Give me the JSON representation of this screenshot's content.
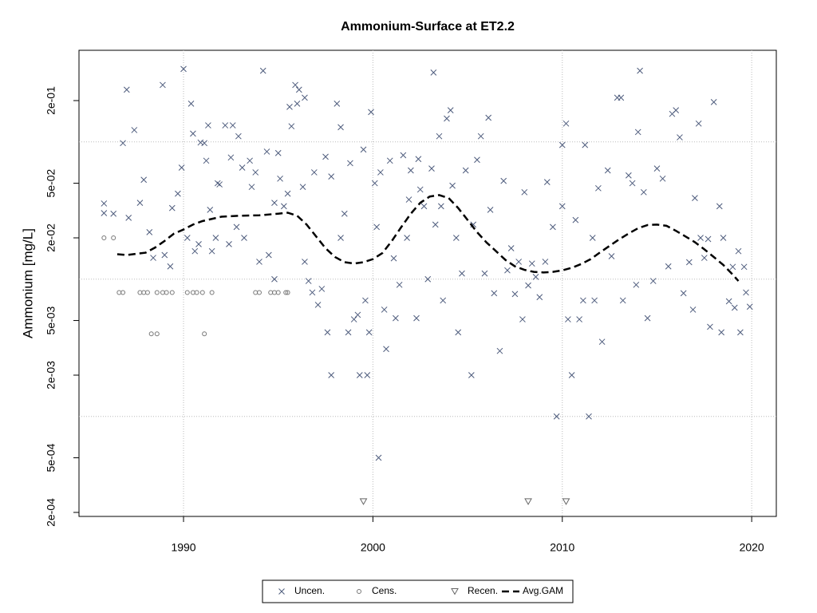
{
  "chart_data": {
    "type": "scatter",
    "title": "Ammonium-Surface at ET2.2",
    "y_label": "Ammonium [mg/L]",
    "xlim": [
      1984.48,
      2021.3
    ],
    "ylim": [
      0.000187,
      0.465
    ],
    "ylog": true,
    "xticks": [
      1990,
      2000,
      2010,
      2020
    ],
    "yticks": [
      {
        "value": 0.2,
        "label": "2e-01"
      },
      {
        "value": 0.05,
        "label": "5e-02"
      },
      {
        "value": 0.02,
        "label": "2e-02"
      },
      {
        "value": 0.005,
        "label": "5e-03"
      },
      {
        "value": 0.002,
        "label": "2e-03"
      },
      {
        "value": 0.0005,
        "label": "5e-04"
      },
      {
        "value": 0.0002,
        "label": "2e-04"
      }
    ],
    "grid": true,
    "ygrid": [
      0.1,
      0.01,
      0.001
    ],
    "legend": "bottom",
    "series": [
      {
        "name": "Uncen.",
        "marker": "x",
        "color": "#4d5b7c",
        "x": [
          1985.8,
          1985.8,
          1986.3,
          1986.8,
          1987.0,
          1987.1,
          1987.4,
          1987.7,
          1987.9,
          1988.2,
          1988.4,
          1988.9,
          1989.0,
          1989.3,
          1989.4,
          1989.7,
          1989.9,
          1990.0,
          1990.2,
          1990.4,
          1990.5,
          1990.6,
          1990.8,
          1990.9,
          1991.1,
          1991.2,
          1991.3,
          1991.4,
          1991.5,
          1991.7,
          1991.8,
          1991.9,
          1992.2,
          1992.4,
          1992.5,
          1992.6,
          1992.8,
          1992.9,
          1993.1,
          1993.2,
          1993.5,
          1993.6,
          1993.8,
          1994.0,
          1994.2,
          1994.4,
          1994.5,
          1994.8,
          1994.8,
          1995.0,
          1995.1,
          1995.3,
          1995.5,
          1995.6,
          1995.7,
          1995.9,
          1996.0,
          1996.1,
          1996.3,
          1996.4,
          1996.4,
          1996.6,
          1996.8,
          1996.9,
          1997.1,
          1997.3,
          1997.5,
          1997.6,
          1997.8,
          1997.8,
          1998.1,
          1998.3,
          1998.3,
          1998.5,
          1998.7,
          1998.8,
          1999.0,
          1999.2,
          1999.3,
          1999.5,
          1999.6,
          1999.7,
          1999.8,
          1999.9,
          2000.1,
          2000.2,
          2000.3,
          2000.4,
          2000.6,
          2000.7,
          2000.9,
          2001.1,
          2001.2,
          2001.4,
          2001.6,
          2001.8,
          2001.9,
          2002.0,
          2002.3,
          2002.4,
          2002.5,
          2002.7,
          2002.9,
          2003.1,
          2003.2,
          2003.3,
          2003.5,
          2003.6,
          2003.7,
          2003.9,
          2004.1,
          2004.2,
          2004.4,
          2004.5,
          2004.7,
          2004.9,
          2005.2,
          2005.3,
          2005.5,
          2005.7,
          2005.9,
          2006.1,
          2006.2,
          2006.4,
          2006.7,
          2006.9,
          2007.1,
          2007.3,
          2007.5,
          2007.7,
          2007.9,
          2008.0,
          2008.2,
          2008.4,
          2008.6,
          2008.8,
          2009.1,
          2009.2,
          2009.5,
          2009.7,
          2010.0,
          2010.0,
          2010.2,
          2010.3,
          2010.5,
          2010.7,
          2010.9,
          2011.1,
          2011.2,
          2011.4,
          2011.6,
          2011.7,
          2011.9,
          2012.1,
          2012.4,
          2012.6,
          2012.9,
          2013.1,
          2013.2,
          2013.5,
          2013.7,
          2013.9,
          2014.0,
          2014.1,
          2014.3,
          2014.5,
          2014.8,
          2015.0,
          2015.3,
          2015.6,
          2015.8,
          2016.0,
          2016.2,
          2016.4,
          2016.7,
          2016.9,
          2017.0,
          2017.2,
          2017.3,
          2017.5,
          2017.7,
          2017.8,
          2018.0,
          2018.3,
          2018.4,
          2018.5,
          2018.8,
          2019.0,
          2019.1,
          2019.3,
          2019.4,
          2019.6,
          2019.7,
          2019.9
        ],
        "values": [
          0.0356,
          0.0303,
          0.03,
          0.098,
          0.24,
          0.028,
          0.122,
          0.036,
          0.053,
          0.022,
          0.0143,
          0.26,
          0.015,
          0.0124,
          0.033,
          0.042,
          0.065,
          0.34,
          0.02,
          0.19,
          0.115,
          0.016,
          0.018,
          0.099,
          0.098,
          0.073,
          0.132,
          0.032,
          0.016,
          0.02,
          0.05,
          0.049,
          0.132,
          0.018,
          0.077,
          0.132,
          0.024,
          0.11,
          0.065,
          0.02,
          0.073,
          0.047,
          0.06,
          0.0134,
          0.33,
          0.085,
          0.015,
          0.01,
          0.036,
          0.083,
          0.054,
          0.034,
          0.042,
          0.18,
          0.13,
          0.26,
          0.19,
          0.24,
          0.047,
          0.0134,
          0.21,
          0.0097,
          0.008,
          0.06,
          0.0065,
          0.0085,
          0.078,
          0.0041,
          0.056,
          0.002,
          0.19,
          0.02,
          0.128,
          0.03,
          0.0041,
          0.07,
          0.0051,
          0.0055,
          0.002,
          0.088,
          0.007,
          0.002,
          0.0041,
          0.165,
          0.05,
          0.024,
          0.0005,
          0.06,
          0.006,
          0.0031,
          0.073,
          0.0142,
          0.0052,
          0.0091,
          0.08,
          0.02,
          0.038,
          0.062,
          0.0052,
          0.075,
          0.045,
          0.034,
          0.01,
          0.064,
          0.32,
          0.025,
          0.11,
          0.034,
          0.007,
          0.148,
          0.17,
          0.048,
          0.02,
          0.0041,
          0.011,
          0.062,
          0.002,
          0.025,
          0.074,
          0.11,
          0.011,
          0.15,
          0.032,
          0.0079,
          0.003,
          0.052,
          0.0116,
          0.0168,
          0.0078,
          0.0134,
          0.0051,
          0.043,
          0.009,
          0.013,
          0.0104,
          0.0074,
          0.0134,
          0.051,
          0.024,
          0.001,
          0.095,
          0.034,
          0.136,
          0.0051,
          0.002,
          0.027,
          0.0051,
          0.007,
          0.095,
          0.001,
          0.02,
          0.007,
          0.046,
          0.0035,
          0.062,
          0.0147,
          0.21,
          0.21,
          0.007,
          0.057,
          0.05,
          0.0091,
          0.118,
          0.33,
          0.043,
          0.0052,
          0.0097,
          0.064,
          0.054,
          0.0124,
          0.16,
          0.17,
          0.108,
          0.0079,
          0.0133,
          0.006,
          0.039,
          0.136,
          0.02,
          0.0143,
          0.0196,
          0.0045,
          0.195,
          0.034,
          0.0041,
          0.02,
          0.0069,
          0.0123,
          0.0062,
          0.016,
          0.0041,
          0.0123,
          0.008,
          0.0063
        ]
      },
      {
        "name": "Cens.",
        "marker": "o",
        "color": "#777777",
        "x": [
          1985.8,
          1986.3,
          1986.6,
          1986.8,
          1987.7,
          1987.9,
          1988.1,
          1988.3,
          1988.6,
          1988.6,
          1988.9,
          1989.1,
          1989.4,
          1990.2,
          1990.5,
          1990.7,
          1991.0,
          1991.1,
          1991.5,
          1993.8,
          1994.0,
          1994.6,
          1994.8,
          1995.0,
          1995.4,
          1995.5
        ],
        "values": [
          0.02,
          0.02,
          0.008,
          0.008,
          0.008,
          0.008,
          0.008,
          0.004,
          0.004,
          0.008,
          0.008,
          0.008,
          0.008,
          0.008,
          0.008,
          0.008,
          0.008,
          0.004,
          0.008,
          0.008,
          0.008,
          0.008,
          0.008,
          0.008,
          0.008,
          0.008
        ]
      },
      {
        "name": "Recen.",
        "marker": "v",
        "color": "#666666",
        "x": [
          1999.5,
          2008.2,
          2010.2
        ],
        "values": [
          0.00024,
          0.00024,
          0.00024
        ]
      },
      {
        "name": "Avg.GAM",
        "marker": "line",
        "color": "#000000",
        "x": [
          1986.5,
          1987,
          1987.5,
          1988,
          1988.5,
          1989,
          1989.5,
          1990,
          1990.5,
          1991,
          1991.5,
          1992,
          1993,
          1994,
          1995,
          1995.5,
          1996,
          1996.5,
          1997,
          1997.5,
          1998,
          1998.5,
          1999,
          1999.5,
          2000,
          2000.5,
          2001,
          2001.5,
          2002,
          2002.5,
          2003,
          2003.5,
          2004,
          2004.5,
          2005,
          2005.5,
          2006,
          2006.5,
          2007,
          2007.5,
          2008,
          2008.5,
          2009,
          2009.5,
          2010,
          2010.5,
          2011,
          2011.5,
          2012,
          2012.5,
          2013,
          2013.5,
          2014,
          2014.5,
          2015,
          2015.5,
          2016,
          2016.5,
          2017,
          2017.5,
          2018,
          2018.5,
          2019,
          2019.3
        ],
        "values": [
          0.0152,
          0.015,
          0.0153,
          0.0156,
          0.017,
          0.019,
          0.0215,
          0.023,
          0.025,
          0.0265,
          0.0275,
          0.0285,
          0.029,
          0.0292,
          0.03,
          0.0305,
          0.029,
          0.025,
          0.0205,
          0.0168,
          0.0145,
          0.0133,
          0.013,
          0.0133,
          0.014,
          0.0155,
          0.019,
          0.024,
          0.03,
          0.036,
          0.04,
          0.041,
          0.039,
          0.033,
          0.027,
          0.022,
          0.0185,
          0.016,
          0.0138,
          0.0124,
          0.0117,
          0.0113,
          0.0112,
          0.0113,
          0.0116,
          0.0121,
          0.0129,
          0.014,
          0.0157,
          0.0175,
          0.0195,
          0.0215,
          0.0235,
          0.0248,
          0.025,
          0.0245,
          0.0225,
          0.0205,
          0.0186,
          0.0165,
          0.0145,
          0.0127,
          0.0108,
          0.0097
        ]
      }
    ]
  }
}
